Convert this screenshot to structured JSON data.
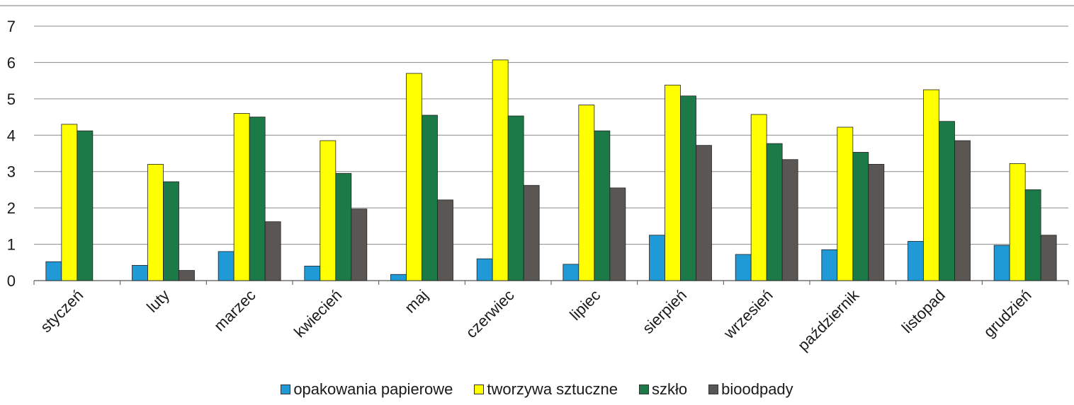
{
  "chart_data": {
    "type": "bar",
    "title": "",
    "xlabel": "",
    "ylabel": "",
    "ylim": [
      0,
      7
    ],
    "y_ticks": [
      "0",
      "1",
      "2",
      "3",
      "4",
      "5",
      "6",
      "7"
    ],
    "grid": true,
    "legend_position": "bottom",
    "categories": [
      "styczeń",
      "luty",
      "marzec",
      "kwiecień",
      "maj",
      "czerwiec",
      "lipiec",
      "sierpień",
      "wrzesień",
      "październik",
      "listopad",
      "grudzień"
    ],
    "series": [
      {
        "name": "opakowania papierowe",
        "color": "#1f9ad6",
        "values": [
          0.52,
          0.42,
          0.8,
          0.4,
          0.17,
          0.6,
          0.45,
          1.25,
          0.72,
          0.85,
          1.08,
          0.97
        ]
      },
      {
        "name": "tworzywa sztuczne",
        "color": "#ffff00",
        "values": [
          4.3,
          3.2,
          4.6,
          3.85,
          5.7,
          6.07,
          4.83,
          5.38,
          4.57,
          4.22,
          5.25,
          3.22
        ]
      },
      {
        "name": "szkło",
        "color": "#1b7a47",
        "values": [
          4.12,
          2.72,
          4.5,
          2.95,
          4.55,
          4.53,
          4.12,
          5.08,
          3.77,
          3.53,
          4.38,
          2.5
        ]
      },
      {
        "name": "bioodpady",
        "color": "#5a5653",
        "values": [
          0,
          0.28,
          1.62,
          1.97,
          2.22,
          2.62,
          2.55,
          3.72,
          3.33,
          3.2,
          3.85,
          1.25
        ]
      }
    ]
  }
}
